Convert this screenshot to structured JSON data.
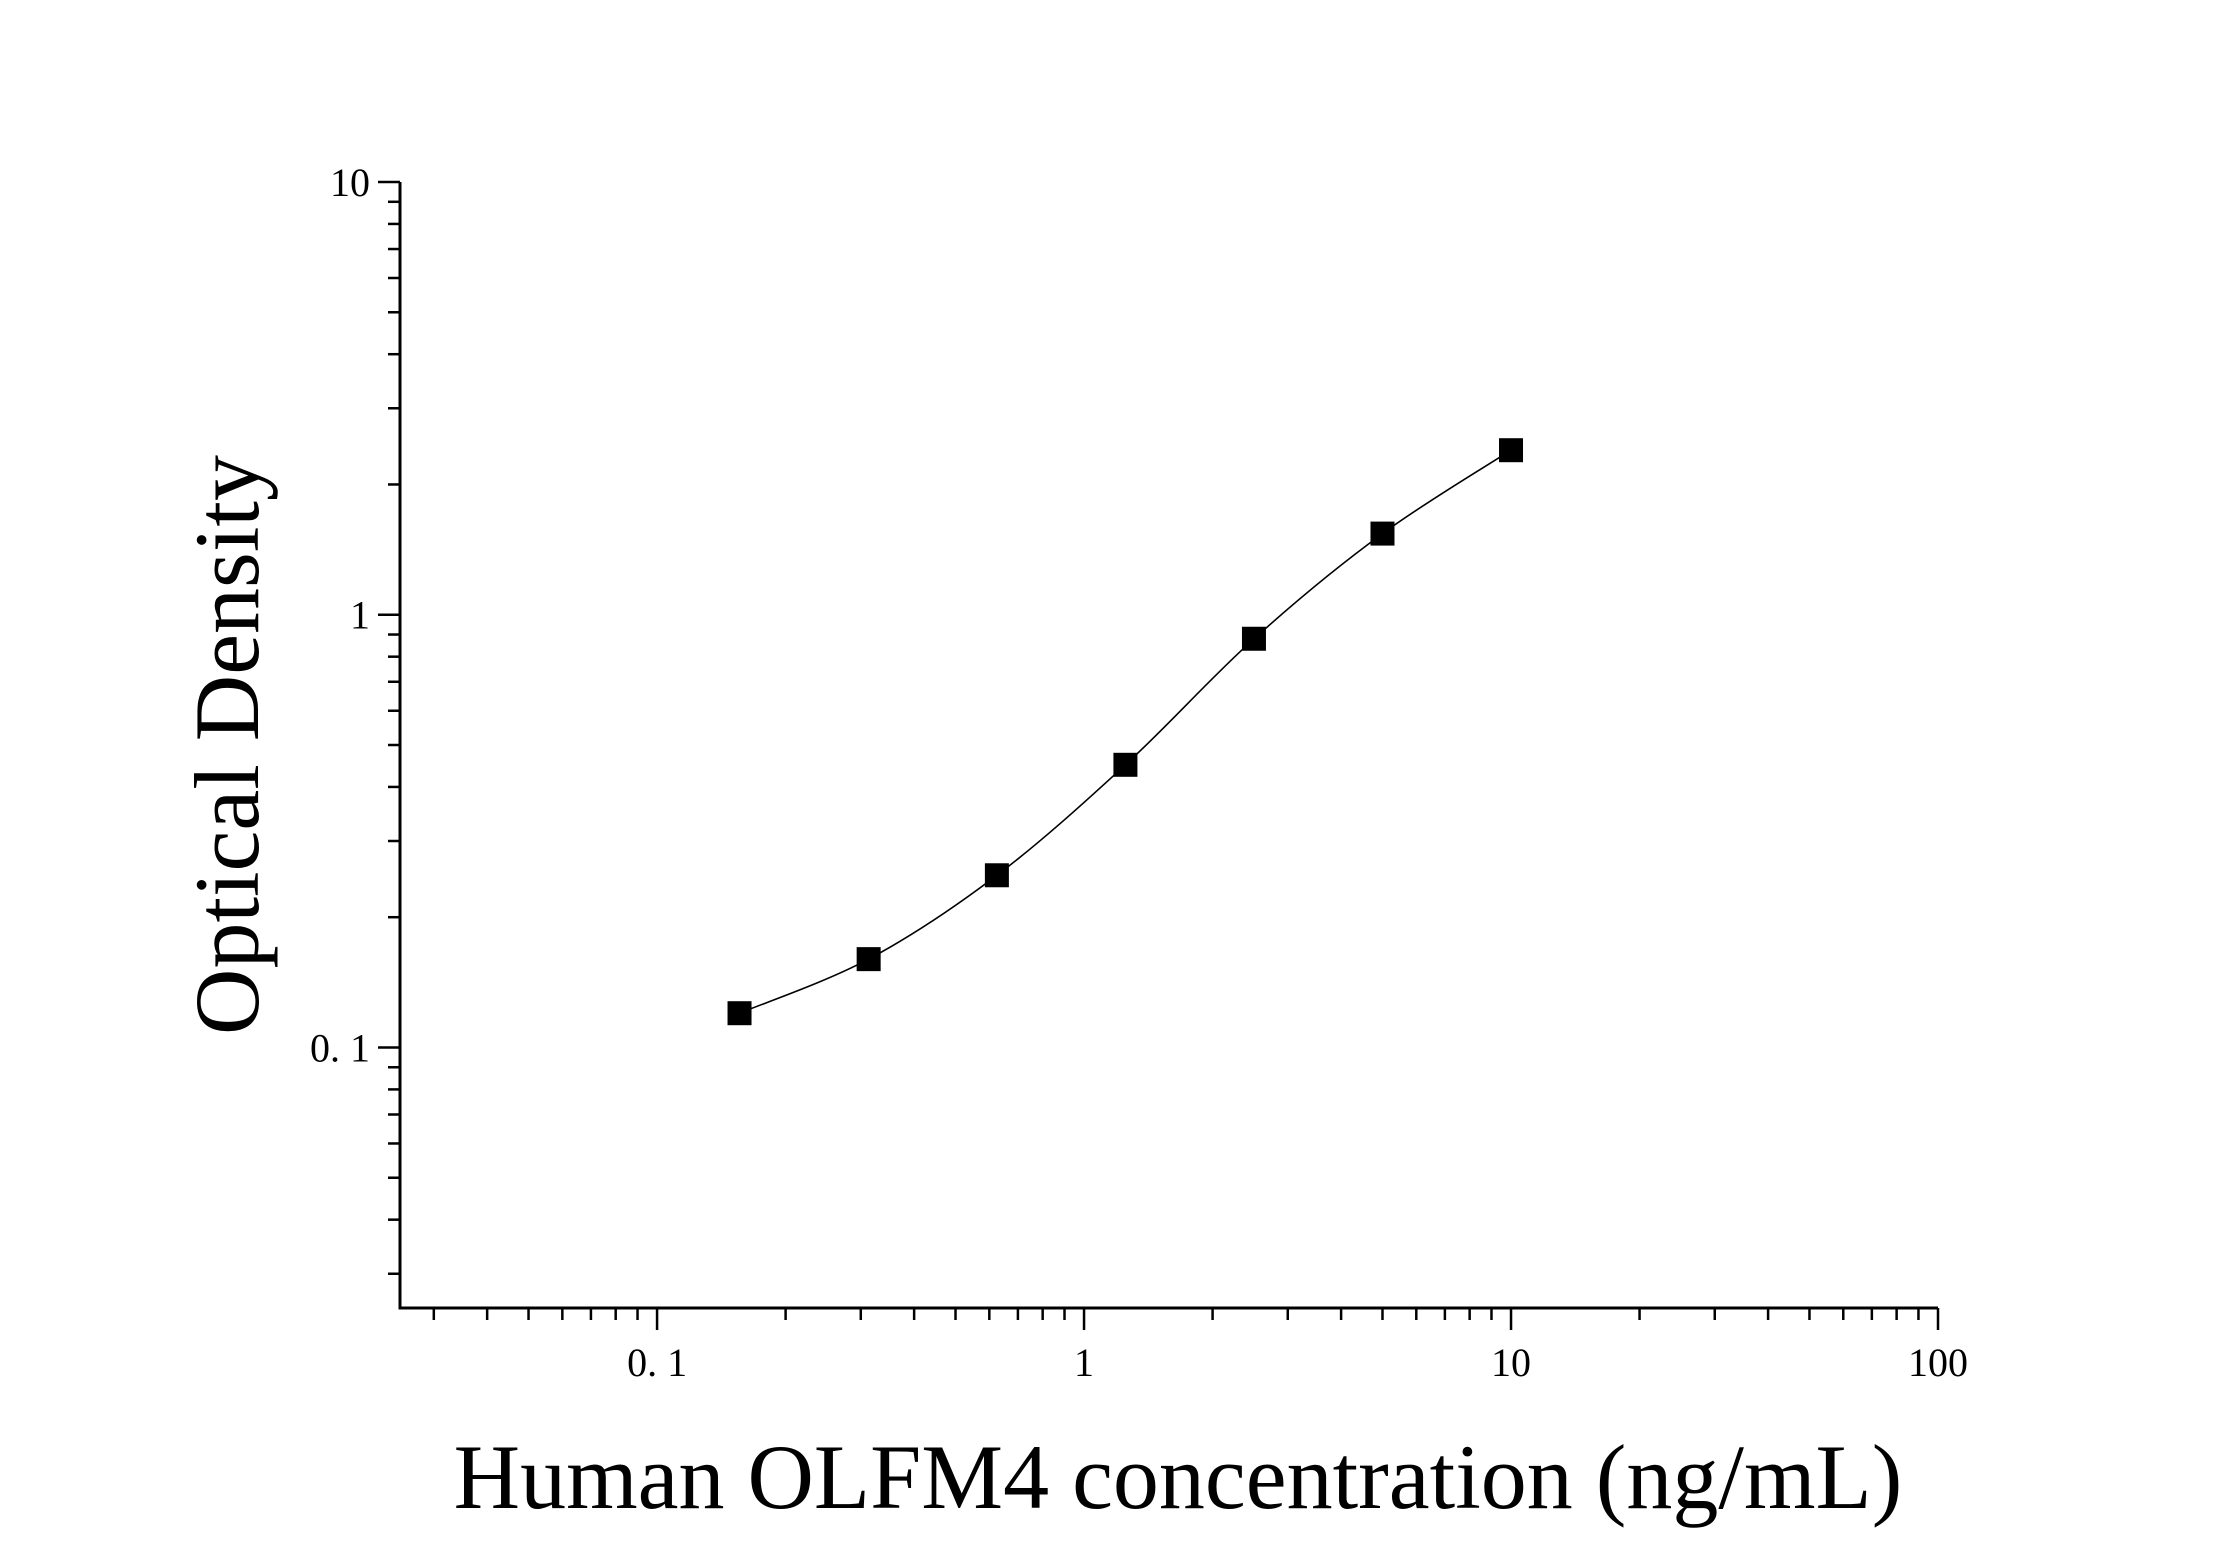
{
  "chart_data": {
    "type": "scatter",
    "xlabel": "Human OLFM4 concentration (ng/mL)",
    "ylabel": "Optical Density",
    "x_scale": "log",
    "y_scale": "log",
    "xlim": [
      0.025,
      100
    ],
    "ylim": [
      0.025,
      10
    ],
    "x_ticks": [
      {
        "value": 0.1,
        "label": "0. 1"
      },
      {
        "value": 1,
        "label": "1"
      },
      {
        "value": 10,
        "label": "10"
      },
      {
        "value": 100,
        "label": "100"
      }
    ],
    "y_ticks": [
      {
        "value": 0.1,
        "label": "0. 1"
      },
      {
        "value": 1,
        "label": "1"
      },
      {
        "value": 10,
        "label": "10"
      }
    ],
    "grid": false,
    "marker": "square",
    "series": [
      {
        "x": [
          0.156,
          0.313,
          0.625,
          1.25,
          2.5,
          5,
          10
        ],
        "y": [
          0.12,
          0.16,
          0.25,
          0.45,
          0.88,
          1.54,
          2.4
        ],
        "fit_curve": true
      }
    ],
    "colors": {
      "marker": "#000000",
      "curve": "#000000",
      "axes": "#000000"
    }
  }
}
